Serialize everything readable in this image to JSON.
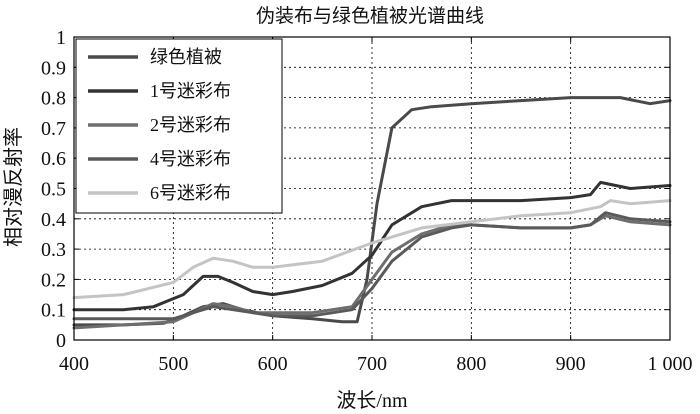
{
  "chart_data": {
    "type": "line",
    "title": "伪装布与绿色植被光谱曲线",
    "xlabel": "波长/nm",
    "ylabel": "相对漫反射率",
    "xlim": [
      400,
      1000
    ],
    "ylim": [
      0,
      1
    ],
    "grid": true,
    "legend_position": "top-left",
    "x_ticks": [
      400,
      500,
      600,
      700,
      800,
      900,
      1000
    ],
    "x_tick_labels": [
      "400",
      "500",
      "600",
      "700",
      "800",
      "900",
      "1 000"
    ],
    "y_ticks": [
      0,
      0.1,
      0.2,
      0.3,
      0.4,
      0.5,
      0.6,
      0.7,
      0.8,
      0.9,
      1
    ],
    "y_tick_labels": [
      "0",
      "0.1",
      "0.2",
      "0.3",
      "0.4",
      "0.5",
      "0.6",
      "0.7",
      "0.8",
      "0.9",
      "1"
    ],
    "series": [
      {
        "name": "绿色植被",
        "color": "#4a4a4a",
        "x": [
          400,
          450,
          490,
          510,
          530,
          550,
          570,
          600,
          640,
          670,
          685,
          695,
          705,
          720,
          740,
          760,
          800,
          850,
          900,
          950,
          980,
          1000
        ],
        "y": [
          0.05,
          0.05,
          0.055,
          0.08,
          0.11,
          0.12,
          0.1,
          0.08,
          0.07,
          0.06,
          0.06,
          0.2,
          0.45,
          0.7,
          0.76,
          0.77,
          0.78,
          0.79,
          0.8,
          0.8,
          0.78,
          0.79
        ]
      },
      {
        "name": "1号迷彩布",
        "color": "#333333",
        "x": [
          400,
          450,
          480,
          510,
          530,
          545,
          560,
          580,
          600,
          620,
          650,
          680,
          700,
          720,
          750,
          780,
          800,
          850,
          900,
          920,
          930,
          960,
          1000
        ],
        "y": [
          0.1,
          0.1,
          0.11,
          0.15,
          0.21,
          0.21,
          0.19,
          0.16,
          0.15,
          0.16,
          0.18,
          0.22,
          0.28,
          0.38,
          0.44,
          0.46,
          0.46,
          0.46,
          0.47,
          0.48,
          0.52,
          0.5,
          0.51
        ]
      },
      {
        "name": "2号迷彩布",
        "color": "#6e6e6e",
        "x": [
          400,
          450,
          500,
          520,
          540,
          560,
          580,
          600,
          640,
          680,
          700,
          720,
          750,
          780,
          800,
          850,
          900,
          920,
          935,
          960,
          1000
        ],
        "y": [
          0.04,
          0.05,
          0.06,
          0.09,
          0.12,
          0.11,
          0.09,
          0.09,
          0.09,
          0.11,
          0.2,
          0.29,
          0.35,
          0.38,
          0.38,
          0.37,
          0.37,
          0.38,
          0.41,
          0.39,
          0.38
        ]
      },
      {
        "name": "4号迷彩布",
        "color": "#5a5a5a",
        "x": [
          400,
          450,
          500,
          520,
          540,
          560,
          580,
          600,
          640,
          680,
          700,
          720,
          750,
          780,
          800,
          850,
          900,
          920,
          935,
          960,
          1000
        ],
        "y": [
          0.07,
          0.07,
          0.07,
          0.09,
          0.11,
          0.1,
          0.09,
          0.08,
          0.08,
          0.1,
          0.17,
          0.26,
          0.34,
          0.37,
          0.38,
          0.37,
          0.37,
          0.38,
          0.42,
          0.4,
          0.39
        ]
      },
      {
        "name": "6号迷彩布",
        "color": "#c4c4c4",
        "x": [
          400,
          450,
          500,
          520,
          540,
          560,
          580,
          600,
          650,
          700,
          750,
          800,
          850,
          900,
          930,
          940,
          960,
          1000
        ],
        "y": [
          0.14,
          0.15,
          0.19,
          0.24,
          0.27,
          0.26,
          0.24,
          0.24,
          0.26,
          0.32,
          0.37,
          0.39,
          0.41,
          0.42,
          0.44,
          0.46,
          0.45,
          0.46
        ]
      }
    ]
  }
}
